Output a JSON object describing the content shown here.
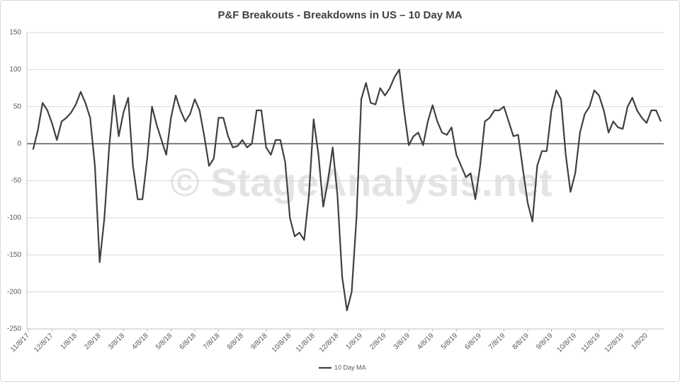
{
  "chart_data": {
    "type": "line",
    "title": "P&F Breakouts - Breakdowns in US – 10 Day MA",
    "watermark": "© StageAnalysis.net",
    "categories": [
      "11/8/17",
      null,
      null,
      null,
      null,
      "12/8/17",
      null,
      null,
      null,
      null,
      "1/8/18",
      null,
      null,
      null,
      null,
      "2/8/18",
      null,
      null,
      null,
      null,
      "3/8/18",
      null,
      null,
      null,
      null,
      "4/8/18",
      null,
      null,
      null,
      null,
      "5/8/18",
      null,
      null,
      null,
      null,
      "6/8/18",
      null,
      null,
      null,
      null,
      "7/8/18",
      null,
      null,
      null,
      null,
      "8/8/18",
      null,
      null,
      null,
      null,
      "9/8/18",
      null,
      null,
      null,
      null,
      "10/8/18",
      null,
      null,
      null,
      null,
      "11/8/18",
      null,
      null,
      null,
      null,
      "12/8/18",
      null,
      null,
      null,
      null,
      "1/8/19",
      null,
      null,
      null,
      null,
      "2/8/19",
      null,
      null,
      null,
      null,
      "3/8/19",
      null,
      null,
      null,
      null,
      "4/8/19",
      null,
      null,
      null,
      null,
      "5/8/19",
      null,
      null,
      null,
      null,
      "6/8/19",
      null,
      null,
      null,
      null,
      "7/8/19",
      null,
      null,
      null,
      null,
      "8/8/19",
      null,
      null,
      null,
      null,
      "9/8/19",
      null,
      null,
      null,
      null,
      "10/8/19",
      null,
      null,
      null,
      null,
      "11/8/19",
      null,
      null,
      null,
      null,
      "12/8/19",
      null,
      null,
      null,
      null,
      "1/8/20",
      null,
      null,
      null
    ],
    "series": [
      {
        "name": "10 Day MA",
        "color": "#404040",
        "values": [
          null,
          -8,
          18,
          55,
          45,
          27,
          5,
          30,
          35,
          42,
          53,
          70,
          55,
          35,
          -30,
          -160,
          -100,
          -5,
          65,
          10,
          42,
          62,
          -30,
          -75,
          -75,
          -20,
          50,
          25,
          5,
          -15,
          35,
          65,
          45,
          30,
          40,
          60,
          45,
          10,
          -30,
          -20,
          35,
          35,
          10,
          -5,
          -3,
          5,
          -5,
          0,
          45,
          45,
          -5,
          -15,
          5,
          5,
          -25,
          -100,
          -125,
          -120,
          -130,
          -70,
          33,
          -15,
          -85,
          -50,
          -5,
          -70,
          -180,
          -225,
          -200,
          -100,
          60,
          82,
          55,
          53,
          75,
          65,
          75,
          90,
          100,
          45,
          -2,
          10,
          15,
          -2,
          30,
          52,
          30,
          15,
          12,
          22,
          -15,
          -30,
          -45,
          -40,
          -75,
          -30,
          30,
          35,
          45,
          45,
          50,
          30,
          10,
          12,
          -35,
          -80,
          -105,
          -30,
          -10,
          -10,
          45,
          72,
          60,
          -15,
          -65,
          -40,
          15,
          40,
          50,
          72,
          65,
          45,
          15,
          30,
          22,
          20,
          50,
          62,
          45,
          35,
          28,
          45,
          45,
          30
        ]
      }
    ],
    "ylim": [
      -250,
      150
    ],
    "yticks": [
      -250,
      -200,
      -150,
      -100,
      -50,
      0,
      50,
      100,
      150
    ],
    "grid": true,
    "legend": "bottom"
  }
}
